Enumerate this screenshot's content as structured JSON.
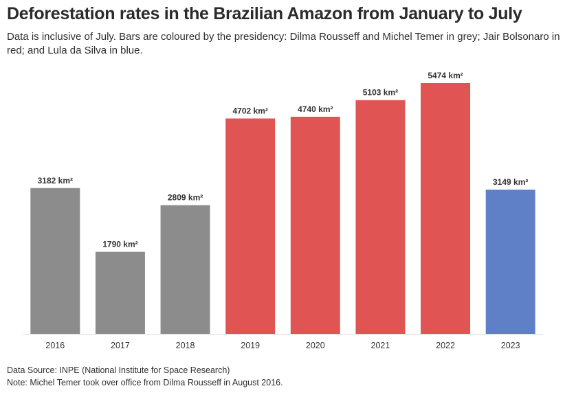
{
  "chart_data": {
    "type": "bar",
    "title": "Deforestation rates in the Brazilian Amazon from January to July",
    "subtitle": "Data is inclusive of July. Bars are coloured by the presidency: Dilma Rousseff and Michel Temer in grey; Jair Bolsonaro in red; and Lula da Silva in blue.",
    "categories": [
      "2016",
      "2017",
      "2018",
      "2019",
      "2020",
      "2021",
      "2022",
      "2023"
    ],
    "values": [
      3182,
      1790,
      2809,
      4702,
      4740,
      5103,
      5474,
      3149
    ],
    "labels": [
      "3182 km²",
      "1790 km²",
      "2809 km²",
      "4702 km²",
      "4740 km²",
      "5103 km²",
      "5474 km²",
      "3149 km²"
    ],
    "bar_colors": [
      "#8c8c8c",
      "#8c8c8c",
      "#8c8c8c",
      "#e05454",
      "#e05454",
      "#e05454",
      "#e05454",
      "#5f80c7"
    ],
    "ylim": [
      0,
      5474
    ],
    "xlabel": "",
    "ylabel": "",
    "grid": false,
    "legend": "none"
  },
  "footer": {
    "source": "Data Source: INPE (National Institute for Space Research)",
    "note": "Note: Michel Temer took over office from Dilma Rousseff in August 2016."
  }
}
